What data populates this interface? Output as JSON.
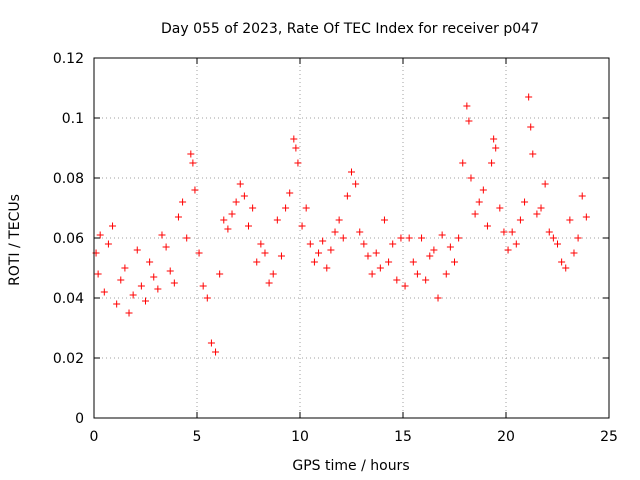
{
  "chart_data": {
    "type": "scatter",
    "title": "Day 055 of 2023, Rate Of TEC Index for receiver p047",
    "xlabel": "GPS time / hours",
    "ylabel": "ROTI / TECUs",
    "xlim": [
      0,
      25
    ],
    "ylim": [
      0,
      0.12
    ],
    "xticks": [
      0,
      5,
      10,
      15,
      20,
      25
    ],
    "yticks": [
      0,
      0.02,
      0.04,
      0.06,
      0.08,
      0.1,
      0.12
    ],
    "xtick_labels": [
      "0",
      "5",
      "10",
      "15",
      "20",
      "25"
    ],
    "ytick_labels": [
      "0",
      "0.02",
      "0.04",
      "0.06",
      "0.08",
      "0.1",
      "0.12"
    ],
    "grid": true,
    "marker": "+",
    "color": "#ff0000",
    "series": [
      {
        "name": "ROTI",
        "x": [
          0.1,
          0.2,
          0.3,
          0.5,
          0.7,
          0.9,
          1.1,
          1.3,
          1.5,
          1.7,
          1.9,
          2.1,
          2.3,
          2.5,
          2.7,
          2.9,
          3.1,
          3.3,
          3.5,
          3.7,
          3.9,
          4.1,
          4.3,
          4.5,
          4.7,
          4.8,
          4.9,
          5.1,
          5.3,
          5.5,
          5.7,
          5.9,
          6.1,
          6.3,
          6.5,
          6.7,
          6.9,
          7.1,
          7.3,
          7.5,
          7.7,
          7.9,
          8.1,
          8.3,
          8.5,
          8.7,
          8.9,
          9.1,
          9.3,
          9.5,
          9.7,
          9.8,
          9.9,
          10.1,
          10.3,
          10.5,
          10.7,
          10.9,
          11.1,
          11.3,
          11.5,
          11.7,
          11.9,
          12.1,
          12.3,
          12.5,
          12.7,
          12.9,
          13.1,
          13.3,
          13.5,
          13.7,
          13.9,
          14.1,
          14.3,
          14.5,
          14.7,
          14.9,
          15.1,
          15.3,
          15.5,
          15.7,
          15.9,
          16.1,
          16.3,
          16.5,
          16.7,
          16.9,
          17.1,
          17.3,
          17.5,
          17.7,
          17.9,
          18.1,
          18.2,
          18.3,
          18.5,
          18.7,
          18.9,
          19.1,
          19.3,
          19.4,
          19.5,
          19.7,
          19.9,
          20.1,
          20.3,
          20.5,
          20.7,
          20.9,
          21.1,
          21.2,
          21.3,
          21.5,
          21.7,
          21.9,
          22.1,
          22.3,
          22.5,
          22.7,
          22.9,
          23.1,
          23.3,
          23.5,
          23.7,
          23.9
        ],
        "values": [
          0.055,
          0.048,
          0.061,
          0.042,
          0.058,
          0.064,
          0.038,
          0.046,
          0.05,
          0.035,
          0.041,
          0.056,
          0.044,
          0.039,
          0.052,
          0.047,
          0.043,
          0.061,
          0.057,
          0.049,
          0.045,
          0.067,
          0.072,
          0.06,
          0.088,
          0.085,
          0.076,
          0.055,
          0.044,
          0.04,
          0.025,
          0.022,
          0.048,
          0.066,
          0.063,
          0.068,
          0.072,
          0.078,
          0.074,
          0.064,
          0.07,
          0.052,
          0.058,
          0.055,
          0.045,
          0.048,
          0.066,
          0.054,
          0.07,
          0.075,
          0.093,
          0.09,
          0.085,
          0.064,
          0.07,
          0.058,
          0.052,
          0.055,
          0.059,
          0.05,
          0.056,
          0.062,
          0.066,
          0.06,
          0.074,
          0.082,
          0.078,
          0.062,
          0.058,
          0.054,
          0.048,
          0.055,
          0.05,
          0.066,
          0.052,
          0.058,
          0.046,
          0.06,
          0.044,
          0.06,
          0.052,
          0.048,
          0.06,
          0.046,
          0.054,
          0.056,
          0.04,
          0.061,
          0.048,
          0.057,
          0.052,
          0.06,
          0.085,
          0.104,
          0.099,
          0.08,
          0.068,
          0.072,
          0.076,
          0.064,
          0.085,
          0.093,
          0.09,
          0.07,
          0.062,
          0.056,
          0.062,
          0.058,
          0.066,
          0.072,
          0.107,
          0.097,
          0.088,
          0.068,
          0.07,
          0.078,
          0.062,
          0.06,
          0.058,
          0.052,
          0.05,
          0.066,
          0.055,
          0.06,
          0.074,
          0.067
        ]
      }
    ]
  }
}
